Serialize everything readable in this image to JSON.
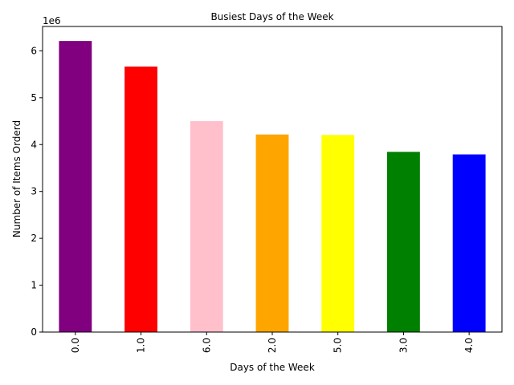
{
  "chart_data": {
    "type": "bar",
    "title": "Busiest Days of the Week",
    "xlabel": "Days of the Week",
    "ylabel": "Number of Items Orderd",
    "y_offset_label": "1e6",
    "y_scale": 1000000,
    "categories": [
      "0.0",
      "1.0",
      "6.0",
      "2.0",
      "5.0",
      "3.0",
      "4.0"
    ],
    "values": [
      6210000,
      5665000,
      4500000,
      4215000,
      4205000,
      3845000,
      3790000
    ],
    "colors": [
      "#800080",
      "#ff0000",
      "#ffc0cb",
      "#ffa500",
      "#ffff00",
      "#008000",
      "#0000ff"
    ],
    "yticks": [
      0,
      1000000,
      2000000,
      3000000,
      4000000,
      5000000,
      6000000
    ],
    "ytick_labels": [
      "0",
      "1",
      "2",
      "3",
      "4",
      "5",
      "6"
    ],
    "ylim": [
      0,
      6520000
    ],
    "grid": false,
    "legend": "none"
  }
}
